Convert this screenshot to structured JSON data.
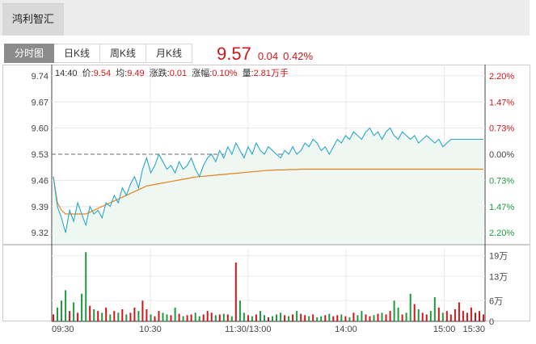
{
  "header": {
    "stock_name": "鸿利智汇"
  },
  "tabs": [
    {
      "label": "分时图",
      "active": true
    },
    {
      "label": "日K线",
      "active": false
    },
    {
      "label": "周K线",
      "active": false
    },
    {
      "label": "月K线",
      "active": false
    }
  ],
  "quote": {
    "price": "9.57",
    "change": "0.04",
    "change_pct": "0.42%"
  },
  "info": {
    "time": "14:40",
    "price_label": "价:",
    "price": "9.54",
    "avg_label": "均:",
    "avg": "9.49",
    "chg_label": "涨跌:",
    "chg": "0.01",
    "pct_label": "涨幅:",
    "pct": "0.10%",
    "vol_label": "量:",
    "vol": "2.81万手"
  },
  "colors": {
    "up": "#d0171c",
    "down": "#1e9a40",
    "price_line": "#2aa7c9",
    "avg_line": "#e8821e",
    "axis": "#444444"
  },
  "chart_data": {
    "type": "line",
    "y_left_ticks": [
      "9.74",
      "9.67",
      "9.60",
      "9.53",
      "9.46",
      "9.39",
      "9.32"
    ],
    "y_right_ticks": [
      "2.20%",
      "1.47%",
      "0.73%",
      "0.00%",
      "0.73%",
      "1.47%",
      "2.20%"
    ],
    "vol_ticks": [
      "19万",
      "13万",
      "6万",
      "0"
    ],
    "x_ticks": [
      "09:30",
      "10:30",
      "11:30/13:00",
      "14:00",
      "15:00",
      "15:30"
    ],
    "prev_close": 9.53,
    "ylim": [
      9.29,
      9.77
    ],
    "vol_max": 210000,
    "series": [
      {
        "kind": "price",
        "values": [
          9.47,
          9.39,
          9.36,
          9.32,
          9.38,
          9.35,
          9.4,
          9.37,
          9.34,
          9.39,
          9.37,
          9.38,
          9.36,
          9.4,
          9.39,
          9.42,
          9.4,
          9.44,
          9.42,
          9.45,
          9.47,
          9.44,
          9.49,
          9.52,
          9.48,
          9.5,
          9.53,
          9.51,
          9.49,
          9.5,
          9.48,
          9.51,
          9.49,
          9.5,
          9.52,
          9.49,
          9.47,
          9.5,
          9.52,
          9.53,
          9.51,
          9.54,
          9.52,
          9.55,
          9.53,
          9.56,
          9.54,
          9.52,
          9.55,
          9.53,
          9.56,
          9.54,
          9.53,
          9.55,
          9.54,
          9.53,
          9.52,
          9.54,
          9.53,
          9.55,
          9.53,
          9.54,
          9.56,
          9.55,
          9.57,
          9.56,
          9.54,
          9.55,
          9.53,
          9.55,
          9.57,
          9.56,
          9.58,
          9.57,
          9.59,
          9.58,
          9.57,
          9.59,
          9.6,
          9.58,
          9.59,
          9.57,
          9.59,
          9.6,
          9.58,
          9.57,
          9.59,
          9.58,
          9.57,
          9.58,
          9.56,
          9.57,
          9.58,
          9.57,
          9.56,
          9.57,
          9.55,
          9.56,
          9.57,
          9.57,
          9.57,
          9.57,
          9.57,
          9.57,
          9.57,
          9.57,
          9.57
        ]
      },
      {
        "kind": "avg",
        "values": [
          9.47,
          9.4,
          9.38,
          9.37,
          9.37,
          9.37,
          9.37,
          9.37,
          9.37,
          9.375,
          9.38,
          9.385,
          9.39,
          9.395,
          9.4,
          9.405,
          9.41,
          9.415,
          9.42,
          9.425,
          9.43,
          9.435,
          9.44,
          9.445,
          9.447,
          9.449,
          9.451,
          9.453,
          9.455,
          9.457,
          9.459,
          9.461,
          9.463,
          9.465,
          9.467,
          9.469,
          9.47,
          9.471,
          9.472,
          9.473,
          9.474,
          9.475,
          9.476,
          9.477,
          9.478,
          9.479,
          9.48,
          9.481,
          9.482,
          9.483,
          9.484,
          9.485,
          9.486,
          9.487,
          9.487,
          9.488,
          9.488,
          9.488,
          9.489,
          9.489,
          9.489,
          9.49,
          9.49,
          9.49,
          9.49,
          9.49,
          9.49,
          9.49,
          9.49,
          9.49,
          9.49,
          9.49,
          9.49,
          9.49,
          9.49,
          9.49,
          9.49,
          9.49,
          9.49,
          9.49,
          9.49,
          9.49,
          9.49,
          9.49,
          9.49,
          9.49,
          9.49,
          9.49,
          9.49,
          9.49,
          9.49,
          9.49,
          9.49,
          9.49,
          9.49,
          9.49,
          9.49,
          9.49,
          9.49,
          9.49,
          9.49,
          9.49,
          9.49,
          9.49,
          9.49,
          9.49,
          9.49
        ]
      },
      {
        "kind": "volume",
        "values": [
          20000,
          40000,
          60000,
          90000,
          30000,
          55000,
          25000,
          80000,
          200000,
          45000,
          35000,
          30000,
          25000,
          40000,
          20000,
          30000,
          25000,
          35000,
          20000,
          25000,
          40000,
          30000,
          60000,
          35000,
          20000,
          15000,
          30000,
          25000,
          20000,
          18000,
          40000,
          22000,
          15000,
          18000,
          20000,
          25000,
          15000,
          20000,
          30000,
          25000,
          18000,
          20000,
          22000,
          20000,
          15000,
          170000,
          60000,
          25000,
          18000,
          15000,
          20000,
          30000,
          18000,
          12000,
          15000,
          20000,
          25000,
          18000,
          15000,
          20000,
          30000,
          22000,
          18000,
          15000,
          20000,
          12000,
          15000,
          18000,
          22000,
          15000,
          18000,
          20000,
          15000,
          12000,
          25000,
          18000,
          30000,
          20000,
          15000,
          18000,
          22000,
          25000,
          20000,
          30000,
          60000,
          40000,
          20000,
          25000,
          80000,
          50000,
          35000,
          25000,
          20000,
          30000,
          70000,
          40000,
          25000,
          30000,
          20000,
          35000,
          55000,
          30000,
          25000,
          40000,
          25000,
          30000,
          20000
        ]
      }
    ]
  }
}
